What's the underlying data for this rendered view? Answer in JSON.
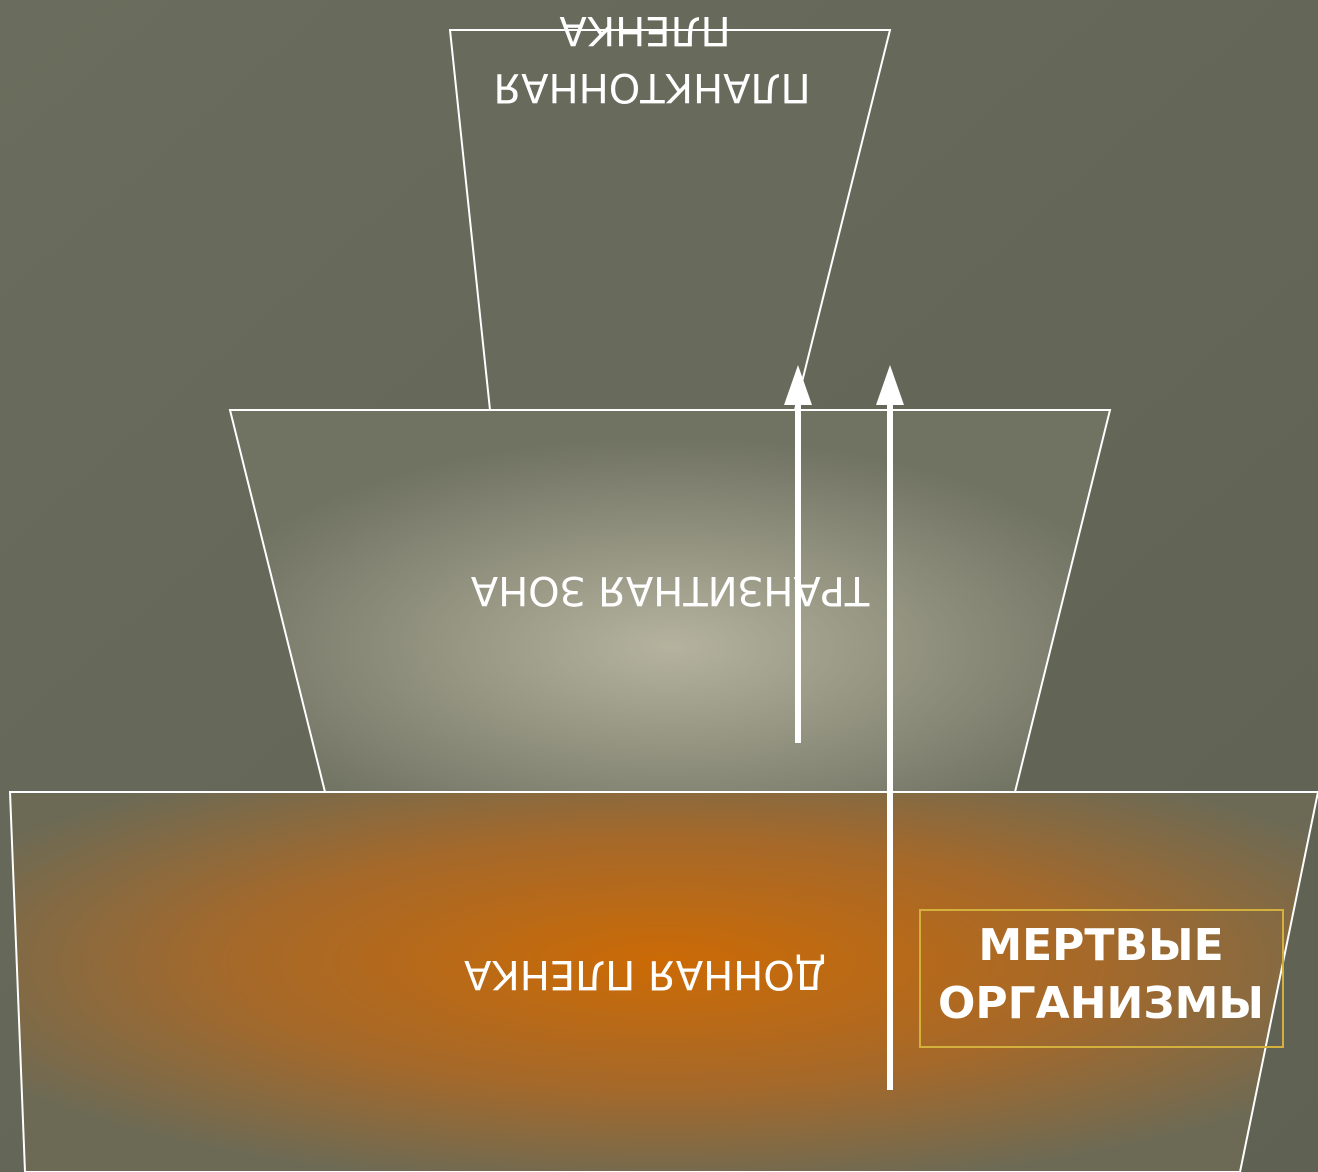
{
  "nodes": [
    {
      "lines": [
        "ПЛАНКТОННАЯ",
        "ПЛЕНКА"
      ]
    },
    {
      "lines": [
        "ТРАНЗИТНАЯ ЗОНА"
      ]
    },
    {
      "lines": [
        "ДОННАЯ ПЛЕНКА"
      ]
    },
    {
      "lines": [
        "МЕРТВЫЕ",
        "ОРГАНИЗМЫ"
      ]
    }
  ]
}
